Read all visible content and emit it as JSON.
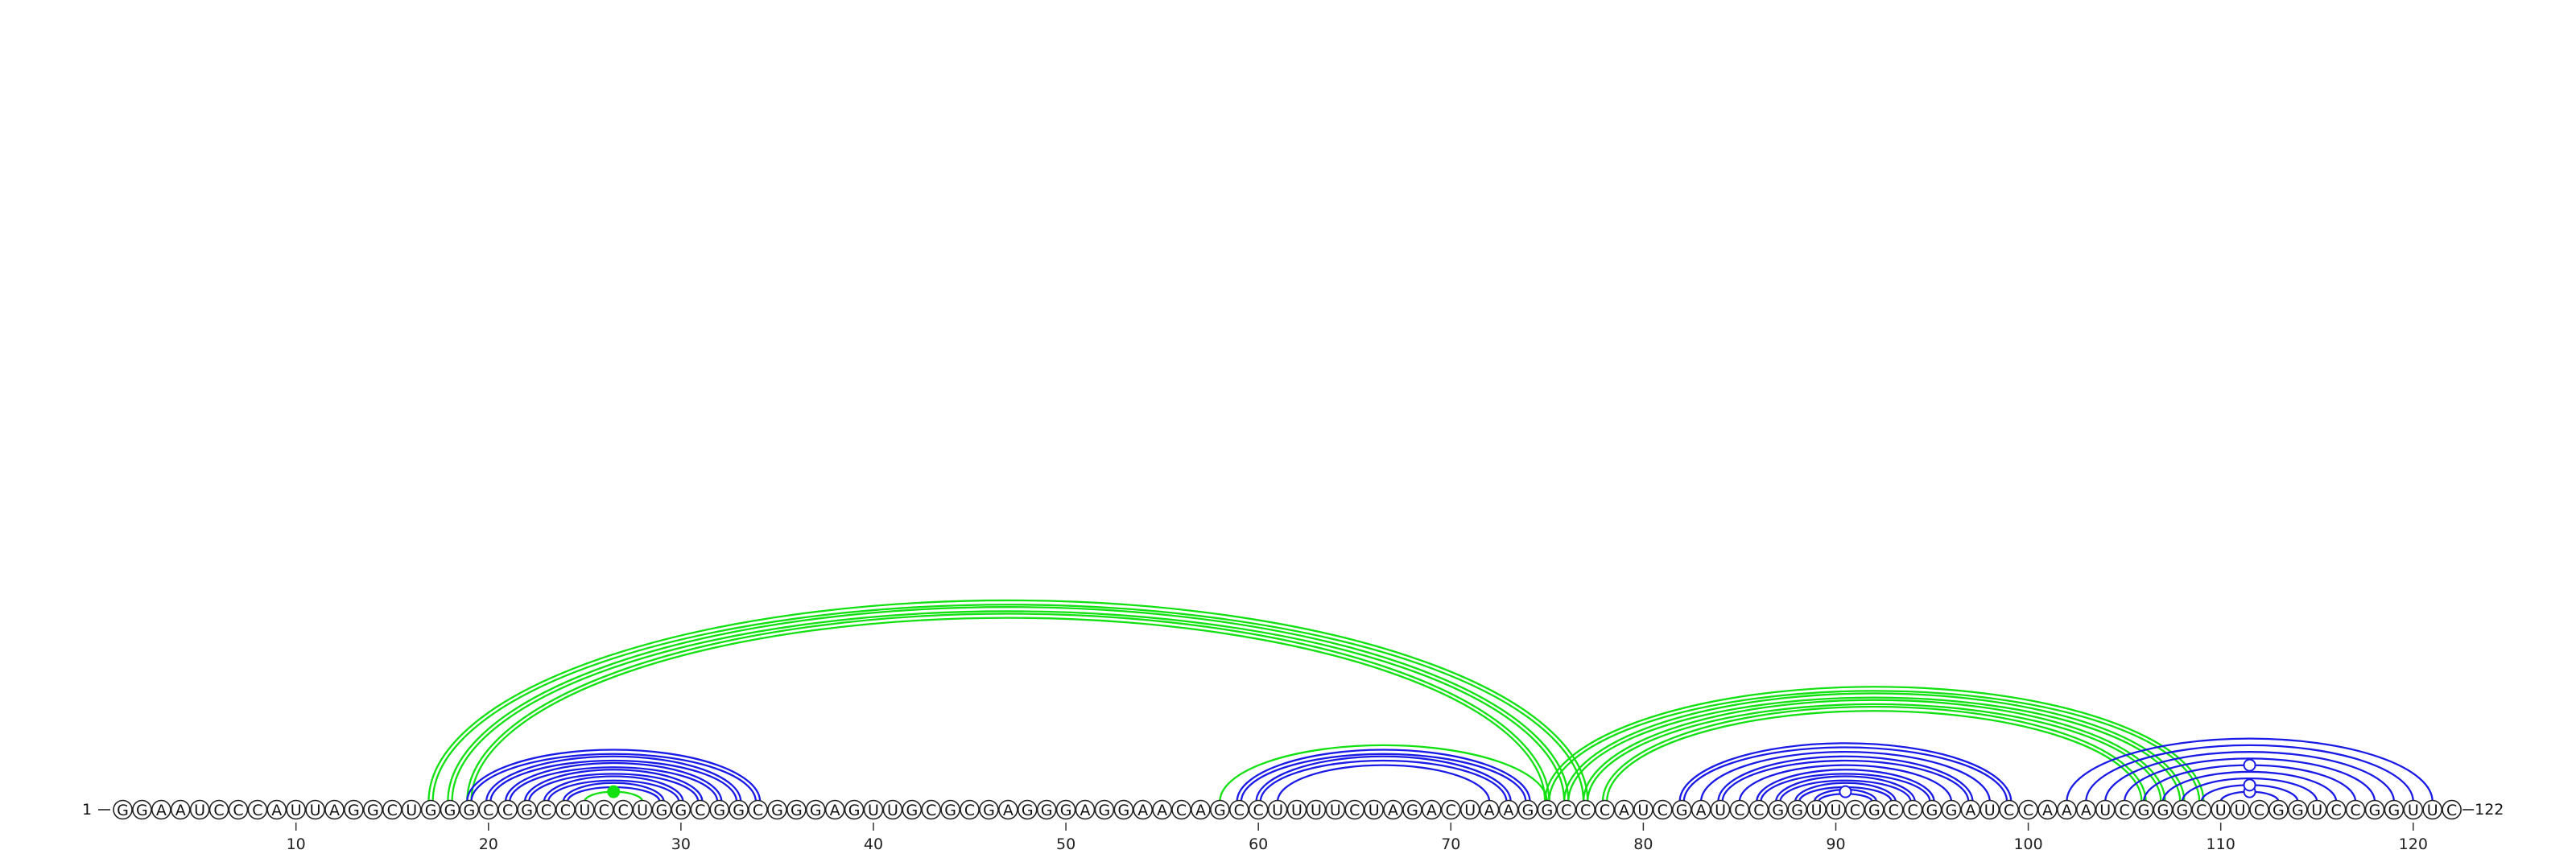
{
  "sequence": "GGAAUCCCAUUAGGCUGGGCCGCCUCCUGGCGGCGGGAGUUGCGCGAGGGAGGAACAGCCUUUUCUAGACUAAGGCCCAUCGAUCCGGUUCGCCGGAUCCAAAUCGGGCUUCGGUCCGGUUC",
  "start_label": "1",
  "end_label": "122",
  "ticks": [
    10,
    20,
    30,
    40,
    50,
    60,
    70,
    80,
    90,
    100,
    110,
    120
  ],
  "colors": {
    "blue": "#1a1ae6",
    "green": "#11e011"
  },
  "arc_groups": [
    {
      "color": "green",
      "style": "double",
      "pairs": [
        [
          17,
          77
        ],
        [
          18,
          76
        ],
        [
          19,
          75
        ]
      ]
    },
    {
      "color": "blue",
      "style": "double",
      "pairs": [
        [
          19,
          34
        ],
        [
          20,
          33
        ],
        [
          21,
          32
        ],
        [
          22,
          31
        ],
        [
          23,
          30
        ],
        [
          24,
          29
        ]
      ]
    },
    {
      "color": "green",
      "style": "single",
      "pairs": [
        [
          25,
          28
        ]
      ]
    },
    {
      "color": "green",
      "style": "single",
      "pairs": [
        [
          58,
          75
        ]
      ]
    },
    {
      "color": "blue",
      "style": "double",
      "pairs": [
        [
          59,
          74
        ],
        [
          60,
          73
        ]
      ]
    },
    {
      "color": "blue",
      "style": "single",
      "pairs": [
        [
          61,
          72
        ]
      ]
    },
    {
      "color": "green",
      "style": "double",
      "pairs": [
        [
          75,
          109
        ],
        [
          76,
          108
        ],
        [
          77,
          107
        ],
        [
          78,
          106
        ]
      ]
    },
    {
      "color": "blue",
      "style": "double",
      "pairs": [
        [
          82,
          99
        ],
        [
          84,
          97
        ],
        [
          86,
          95
        ],
        [
          87,
          94
        ],
        [
          88,
          93
        ],
        [
          89,
          92
        ]
      ]
    },
    {
      "color": "blue",
      "style": "single",
      "pairs": [
        [
          83,
          98
        ],
        [
          85,
          96
        ],
        [
          102,
          121
        ],
        [
          103,
          120
        ],
        [
          104,
          119
        ],
        [
          105,
          118
        ],
        [
          106,
          117
        ],
        [
          107,
          116
        ],
        [
          108,
          115
        ],
        [
          109,
          114
        ],
        [
          110,
          113
        ]
      ]
    }
  ],
  "markers": [
    {
      "position": 26.5,
      "pair": [
        25,
        28
      ],
      "color": "green",
      "filled": true
    },
    {
      "position": 90.5,
      "pair": [
        89,
        92
      ],
      "color": "blue",
      "filled": false
    },
    {
      "position": 111.5,
      "pair": [
        110,
        113
      ],
      "color": "blue",
      "filled": false
    },
    {
      "position": 111.5,
      "pair": [
        109,
        114
      ],
      "color": "blue",
      "filled": false
    },
    {
      "position": 111.5,
      "pair": [
        106,
        117
      ],
      "color": "blue",
      "filled": false
    }
  ]
}
